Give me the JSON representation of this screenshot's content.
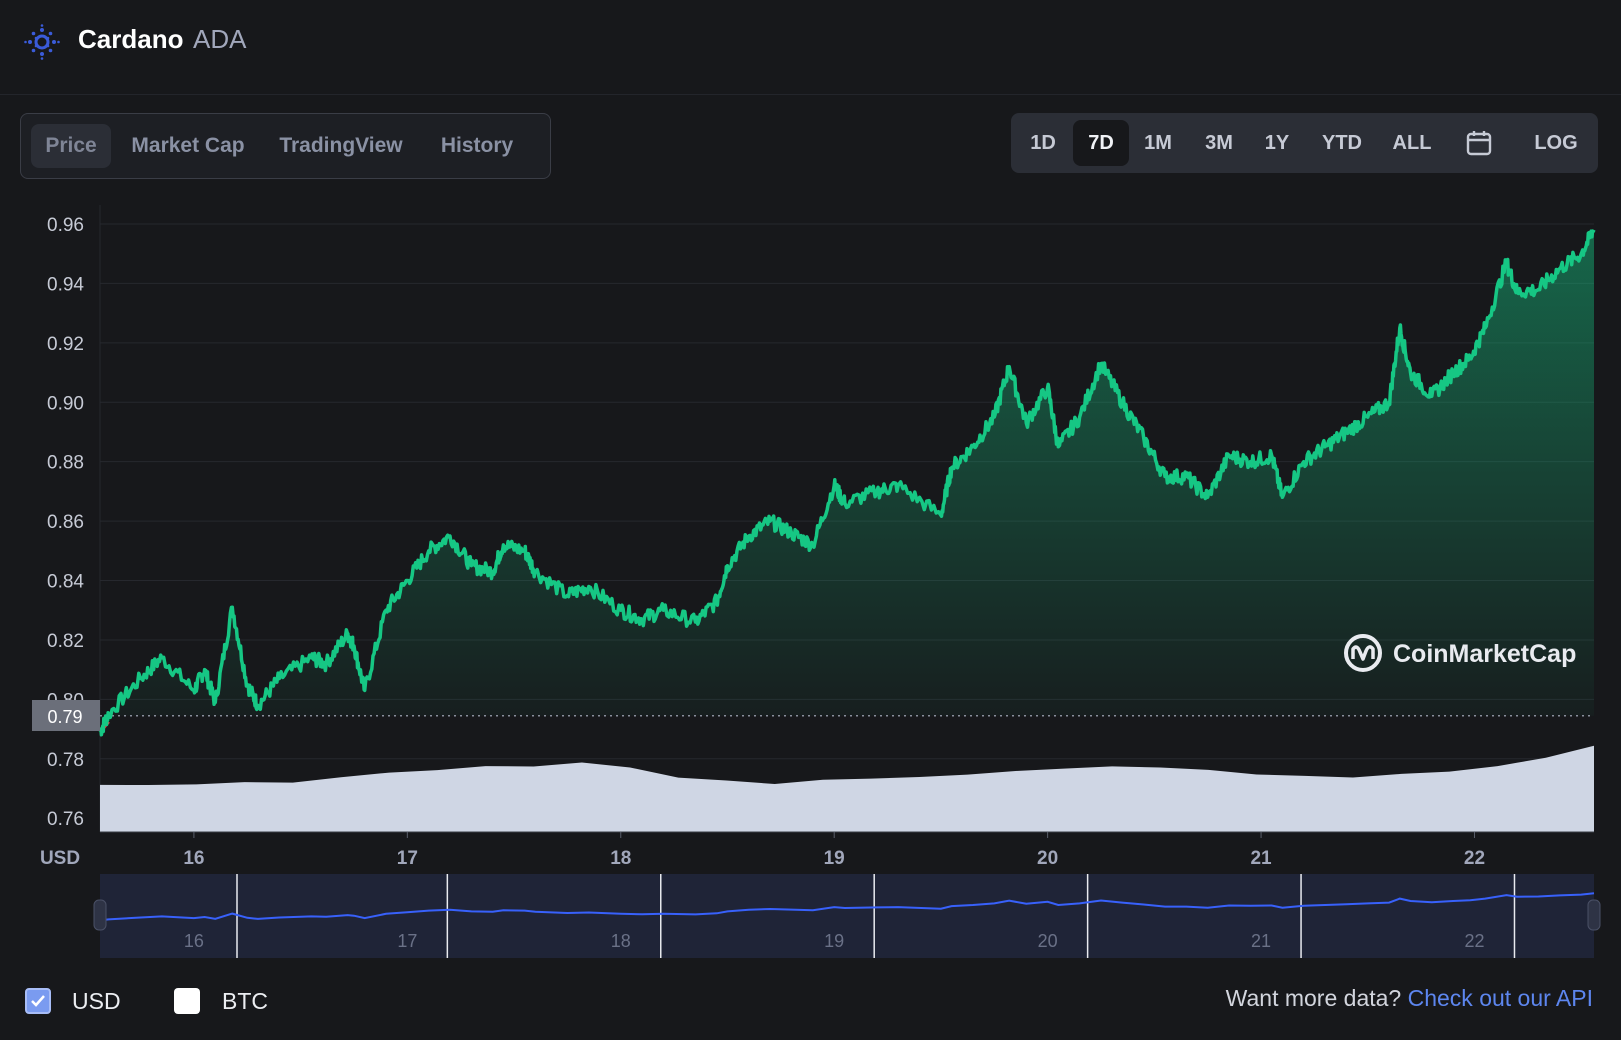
{
  "header": {
    "coin_name": "Cardano",
    "coin_symbol": "ADA",
    "logo_icon": "cardano-logo-icon"
  },
  "tabs": [
    {
      "label": "Price",
      "active": true
    },
    {
      "label": "Market Cap",
      "active": false
    },
    {
      "label": "TradingView",
      "active": false
    },
    {
      "label": "History",
      "active": false
    }
  ],
  "ranges": [
    {
      "label": "1D",
      "active": false
    },
    {
      "label": "7D",
      "active": true
    },
    {
      "label": "1M",
      "active": false
    },
    {
      "label": "3M",
      "active": false
    },
    {
      "label": "1Y",
      "active": false
    },
    {
      "label": "YTD",
      "active": false
    },
    {
      "label": "ALL",
      "active": false
    },
    {
      "label": "",
      "icon": "calendar-icon",
      "active": false
    },
    {
      "label": "LOG",
      "active": false
    }
  ],
  "chart_data": {
    "type": "area",
    "currency_label": "USD",
    "x_tick_labels": [
      "16",
      "17",
      "18",
      "19",
      "20",
      "21",
      "22"
    ],
    "y_tick_labels": [
      "0.96",
      "0.94",
      "0.92",
      "0.90",
      "0.88",
      "0.86",
      "0.84",
      "0.82",
      "0.80",
      "0.78",
      "0.76"
    ],
    "ylim": [
      0.755,
      0.965
    ],
    "open_price_label": "0.79",
    "open_price": 0.7945,
    "x": [
      15.56,
      15.6,
      15.75,
      15.85,
      16.0,
      16.05,
      16.1,
      16.18,
      16.25,
      16.3,
      16.4,
      16.55,
      16.62,
      16.72,
      16.75,
      16.8,
      16.9,
      17.0,
      17.1,
      17.2,
      17.3,
      17.4,
      17.45,
      17.55,
      17.6,
      17.75,
      17.85,
      18.0,
      18.1,
      18.2,
      18.35,
      18.45,
      18.5,
      18.6,
      18.7,
      18.8,
      18.9,
      19.0,
      19.05,
      19.2,
      19.3,
      19.5,
      19.55,
      19.65,
      19.75,
      19.82,
      19.9,
      20.0,
      20.05,
      20.15,
      20.25,
      20.35,
      20.45,
      20.55,
      20.65,
      20.75,
      20.85,
      20.95,
      21.05,
      21.1,
      21.2,
      21.3,
      21.4,
      21.5,
      21.6,
      21.65,
      21.7,
      21.8,
      21.9,
      21.98,
      22.05,
      22.15,
      22.2,
      22.3,
      22.4,
      22.5,
      22.56
    ],
    "prices": [
      0.789,
      0.795,
      0.807,
      0.814,
      0.803,
      0.81,
      0.799,
      0.831,
      0.805,
      0.798,
      0.807,
      0.814,
      0.812,
      0.822,
      0.818,
      0.803,
      0.83,
      0.84,
      0.85,
      0.855,
      0.845,
      0.843,
      0.852,
      0.85,
      0.843,
      0.835,
      0.838,
      0.83,
      0.827,
      0.83,
      0.826,
      0.833,
      0.845,
      0.855,
      0.86,
      0.856,
      0.852,
      0.872,
      0.866,
      0.87,
      0.872,
      0.862,
      0.878,
      0.885,
      0.895,
      0.912,
      0.893,
      0.905,
      0.885,
      0.895,
      0.913,
      0.9,
      0.888,
      0.875,
      0.875,
      0.868,
      0.882,
      0.88,
      0.882,
      0.868,
      0.88,
      0.885,
      0.89,
      0.895,
      0.9,
      0.925,
      0.91,
      0.902,
      0.91,
      0.915,
      0.925,
      0.947,
      0.937,
      0.938,
      0.945,
      0.95,
      0.958
    ],
    "volume_relative": [
      0.51,
      0.52,
      0.53,
      0.55,
      0.55,
      0.6,
      0.66,
      0.68,
      0.72,
      0.74,
      0.76,
      0.72,
      0.62,
      0.57,
      0.55,
      0.57,
      0.6,
      0.62,
      0.65,
      0.67,
      0.7,
      0.73,
      0.72,
      0.68,
      0.64,
      0.61,
      0.61,
      0.64,
      0.66,
      0.72,
      0.82,
      0.95
    ],
    "line_color": "#16c784",
    "down_color": "#ea3943",
    "volume_color": "#cfd6e4",
    "grid": true,
    "navigator_tick_labels": [
      "16",
      "17",
      "18",
      "19",
      "20",
      "21",
      "22"
    ],
    "navigator_line_color": "#3861fb"
  },
  "watermark": {
    "text": "CoinMarketCap",
    "icon": "coinmarketcap-logo-icon"
  },
  "footer": {
    "usd_label": "USD",
    "usd_checked": true,
    "btc_label": "BTC",
    "btc_checked": false,
    "more_data_text": "Want more data?",
    "api_link_text": "Check out our API",
    "checkbox_color": "#7a9bf0",
    "link_color": "#5d86ef"
  }
}
